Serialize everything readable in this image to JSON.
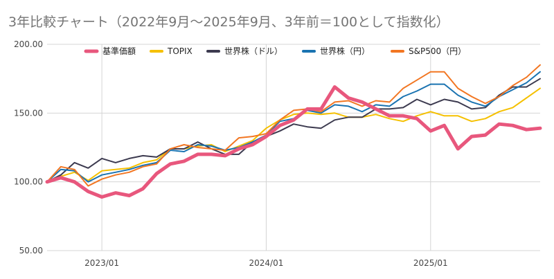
{
  "chart_data": {
    "type": "line",
    "title": "3年比較チャート（2022年9月～2025年9月、3年前＝100として指数化）",
    "xlabel": "",
    "ylabel": "",
    "ylim": [
      50,
      200
    ],
    "yticks": [
      "50.00",
      "100.00",
      "150.00",
      "200.00"
    ],
    "xticks": [
      "2023/01",
      "2024/01",
      "2025/01"
    ],
    "grid": true,
    "legend_position": "top",
    "x": [
      "2022/09",
      "2022/10",
      "2022/11",
      "2022/12",
      "2023/01",
      "2023/02",
      "2023/03",
      "2023/04",
      "2023/05",
      "2023/06",
      "2023/07",
      "2023/08",
      "2023/09",
      "2023/10",
      "2023/11",
      "2023/12",
      "2024/01",
      "2024/02",
      "2024/03",
      "2024/04",
      "2024/05",
      "2024/06",
      "2024/07",
      "2024/08",
      "2024/09",
      "2024/10",
      "2024/11",
      "2024/12",
      "2025/01",
      "2025/02",
      "2025/03",
      "2025/04",
      "2025/05",
      "2025/06",
      "2025/07",
      "2025/08",
      "2025/09"
    ],
    "series": [
      {
        "name": "基準価額",
        "color": "#e8577d",
        "width": 5,
        "values": [
          100,
          103,
          100,
          93,
          89,
          92,
          90,
          95,
          106,
          113,
          115,
          120,
          120,
          119,
          124,
          127,
          133,
          141,
          145,
          153,
          153,
          169,
          161,
          158,
          153,
          148,
          148,
          146,
          137,
          141,
          124,
          133,
          134,
          142,
          141,
          138,
          139
        ]
      },
      {
        "name": "TOPIX",
        "color": "#f5c000",
        "width": 2,
        "values": [
          100,
          104,
          107,
          101,
          108,
          109,
          110,
          114,
          116,
          124,
          124,
          126,
          127,
          122,
          126,
          130,
          139,
          145,
          149,
          150,
          149,
          150,
          147,
          147,
          149,
          146,
          144,
          148,
          151,
          148,
          148,
          144,
          146,
          151,
          154,
          161,
          168
        ]
      },
      {
        "name": "世界株（ドル）",
        "color": "#3c3a4f",
        "width": 2,
        "values": [
          100,
          105,
          114,
          110,
          117,
          114,
          117,
          119,
          118,
          124,
          124,
          129,
          124,
          120,
          120,
          129,
          133,
          137,
          142,
          140,
          139,
          145,
          147,
          147,
          153,
          153,
          154,
          160,
          156,
          160,
          158,
          153,
          154,
          163,
          169,
          169,
          175
        ]
      },
      {
        "name": "世界株（円）",
        "color": "#1a73b1",
        "width": 2,
        "values": [
          100,
          109,
          108,
          100,
          105,
          107,
          109,
          112,
          114,
          123,
          122,
          127,
          126,
          123,
          125,
          129,
          134,
          144,
          146,
          152,
          150,
          156,
          155,
          151,
          156,
          155,
          162,
          166,
          171,
          171,
          163,
          158,
          155,
          162,
          167,
          172,
          180
        ]
      },
      {
        "name": "S&P500（円）",
        "color": "#f27622",
        "width": 2,
        "values": [
          100,
          111,
          109,
          97,
          102,
          105,
          107,
          111,
          113,
          124,
          127,
          125,
          124,
          123,
          132,
          133,
          135,
          145,
          152,
          153,
          151,
          158,
          159,
          155,
          159,
          158,
          168,
          174,
          180,
          180,
          168,
          162,
          157,
          162,
          170,
          176,
          185
        ]
      }
    ]
  }
}
